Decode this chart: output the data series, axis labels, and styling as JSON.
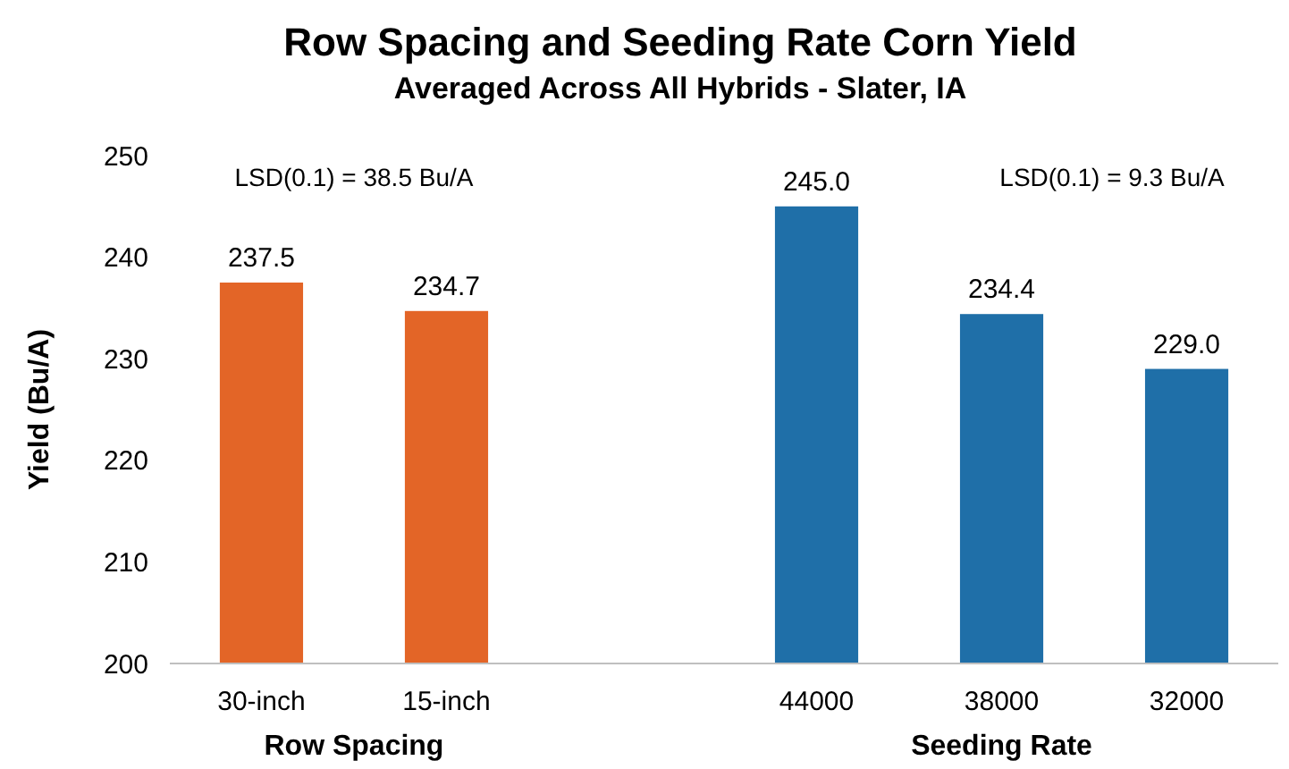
{
  "chart_data": {
    "type": "bar",
    "title": "Row Spacing and Seeding Rate Corn Yield",
    "subtitle": "Averaged Across All Hybrids - Slater, IA",
    "ylabel": "Yield (Bu/A)",
    "categories": [
      "30-inch",
      "15-inch",
      null,
      "44000",
      "38000",
      "32000"
    ],
    "values": [
      237.5,
      234.7,
      null,
      245.0,
      234.4,
      229.0
    ],
    "value_labels": [
      "237.5",
      "234.7",
      null,
      "245.0",
      "234.4",
      "229.0"
    ],
    "colors": [
      "#e36527",
      "#e36527",
      null,
      "#1f6fa8",
      "#1f6fa8",
      "#1f6fa8"
    ],
    "ylim": [
      200,
      250
    ],
    "yticks": [
      200,
      210,
      220,
      230,
      240,
      250
    ],
    "grid": false,
    "annotations": [
      "LSD(0.1) = 38.5 Bu/A",
      "LSD(0.1) = 9.3 Bu/A",
      "Row Spacing",
      "Seeding Rate"
    ]
  }
}
